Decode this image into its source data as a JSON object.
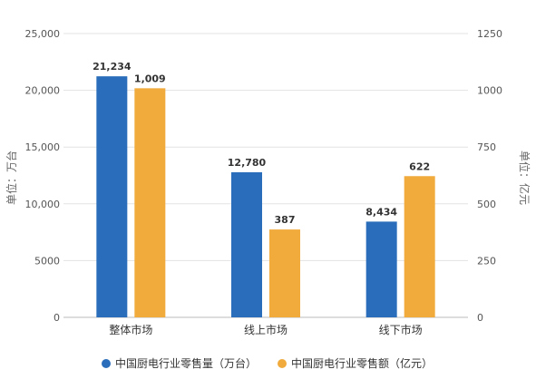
{
  "chart_data": {
    "type": "bar",
    "categories": [
      "整体市场",
      "线上市场",
      "线下市场"
    ],
    "series": [
      {
        "name": "中国厨电行业零售量（万台）",
        "axis": "left",
        "color": "#2a6ebb",
        "values": [
          21234,
          12780,
          8434
        ],
        "labels": [
          "21,234",
          "12,780",
          "8,434"
        ]
      },
      {
        "name": "中国厨电行业零售额（亿元）",
        "axis": "right",
        "color": "#f0ab3c",
        "values": [
          1009,
          387,
          622
        ],
        "labels": [
          "1,009",
          "387",
          "622"
        ]
      }
    ],
    "y_left": {
      "label": "单位：万台",
      "range": [
        0,
        25000
      ],
      "ticks": [
        0,
        5000,
        10000,
        15000,
        20000,
        25000
      ],
      "tick_labels": [
        "0",
        "5000",
        "10,000",
        "15,000",
        "20,000",
        "25,000"
      ]
    },
    "y_right": {
      "label": "单位：亿元",
      "range": [
        0,
        1250
      ],
      "ticks": [
        0,
        250,
        500,
        750,
        1000,
        1250
      ],
      "tick_labels": [
        "0",
        "250",
        "500",
        "750",
        "1000",
        "1250"
      ]
    },
    "grid": true,
    "legend_position": "bottom"
  }
}
